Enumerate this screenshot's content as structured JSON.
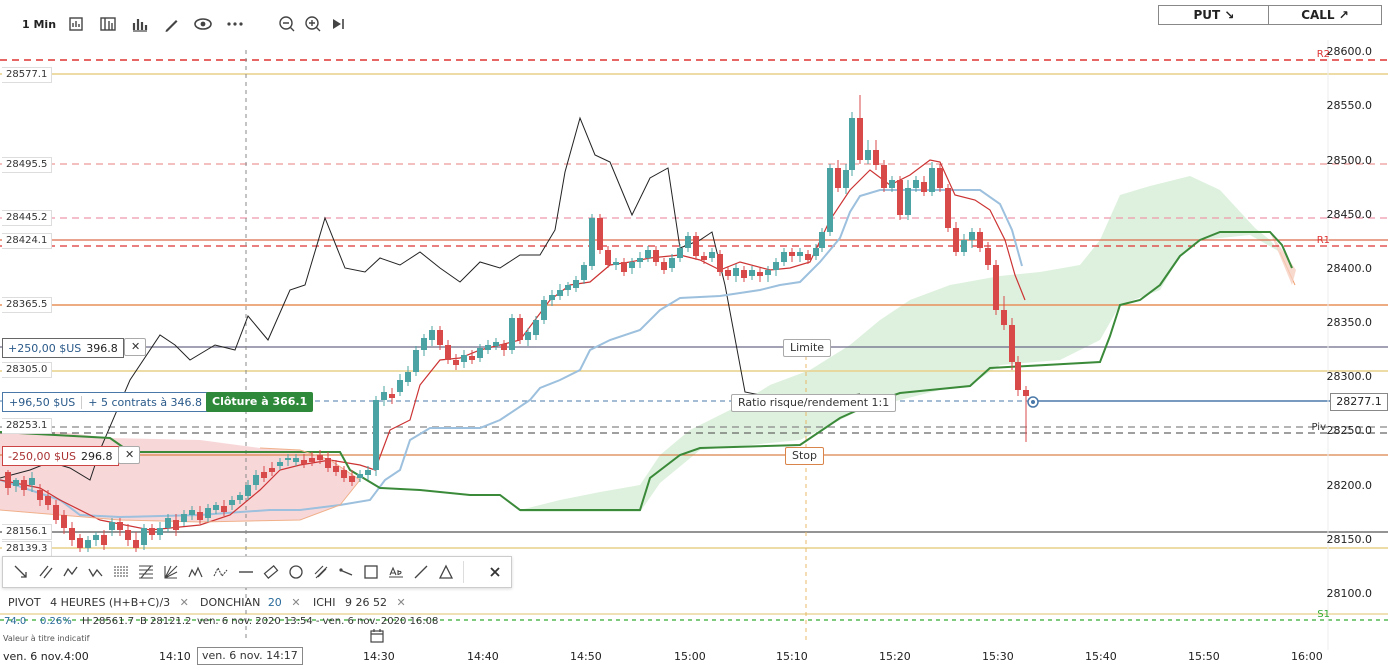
{
  "toolbar": {
    "timeframe": "1 Min",
    "put_label": "PUT ↘",
    "call_label": "CALL ↗"
  },
  "price_axis": {
    "ticks": [
      "28600.0",
      "28550.0",
      "28500.0",
      "28450.0",
      "28400.0",
      "28350.0",
      "28300.0",
      "28250.0",
      "28200.0",
      "28150.0",
      "28100.0"
    ],
    "current_price": "28277.1",
    "levels": [
      {
        "name": "R2",
        "color": "#d33"
      },
      {
        "name": "R1",
        "color": "#d33"
      },
      {
        "name": "Piv",
        "color": "#333"
      },
      {
        "name": "S1",
        "color": "#3a3"
      }
    ]
  },
  "price_labels": [
    {
      "text": "28577.1",
      "color": "#e8c86a"
    },
    {
      "text": "28495.5",
      "color": "#e88"
    },
    {
      "text": "28445.2",
      "color": "#e88"
    },
    {
      "text": "28424.1",
      "color": "#d96a4a"
    },
    {
      "text": "28365.5",
      "color": "#e8905a"
    },
    {
      "text": "28305.0",
      "color": "#e8c86a"
    },
    {
      "text": "28253.1",
      "color": "#777"
    },
    {
      "text": "28156.1",
      "color": "#555"
    },
    {
      "text": "28139.3",
      "color": "#e8c86a"
    }
  ],
  "positions": {
    "upper": {
      "amount": "+250,00 $US",
      "price": "396.8",
      "close": "✕"
    },
    "current": {
      "amount": "+96,50 $US",
      "detail": "+ 5 contrats à 346.8",
      "close_button": "Clôture à 366.1"
    },
    "lower": {
      "amount": "-250,00 $US",
      "price": "296.8",
      "close": "✕"
    },
    "limit_label": "Limite",
    "ratio_label": "Ratio risque/rendement 1:1",
    "stop_label": "Stop"
  },
  "time_axis": {
    "ticks": [
      "14:10",
      "14:30",
      "14:40",
      "14:50",
      "15:00",
      "15:10",
      "15:20",
      "15:30",
      "15:40",
      "15:50",
      "16:00"
    ],
    "start_partial": "ven. 6 nov.",
    "start_partial_tail": "4:00",
    "crosshair_label": "ven. 6 nov. 14:17"
  },
  "indicators": [
    {
      "name": "PIVOT",
      "params": "4 HEURES  (H+B+C)/3",
      "color": "#333"
    },
    {
      "name": "DONCHIAN",
      "params": "20",
      "color": "#2a6a9a"
    },
    {
      "name": "ICHI",
      "params": "9  26  52",
      "color": "#333"
    }
  ],
  "ohlc": {
    "last": "74.0",
    "pct": "0.26%",
    "high": "H 28561.7",
    "low": "B 28121.2",
    "range": "ven. 6 nov. 2020 13:54 - ven. 6 nov. 2020 16:08",
    "value_title": "Valeur à titre indicatif"
  },
  "colors": {
    "up": "#4ba3a3",
    "down": "#d84a4a",
    "tenkan": "#c33",
    "kijun": "#9cc0dd",
    "chikou": "#222",
    "spanB": "#3a8a3a"
  }
}
